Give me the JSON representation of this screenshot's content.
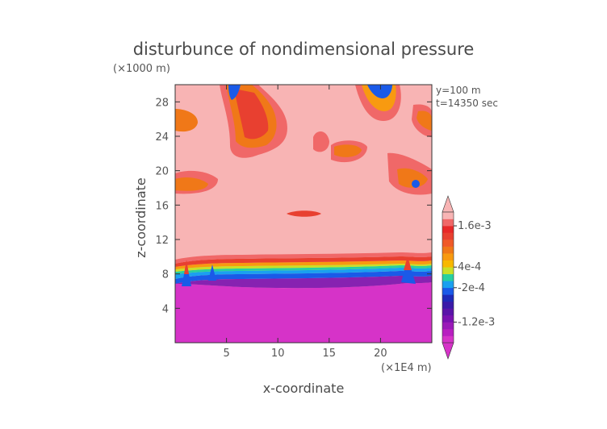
{
  "chart_data": {
    "type": "heatmap",
    "title": "disturbunce of nondimensional pressure",
    "xlabel": "x-coordinate",
    "ylabel": "z-coordinate",
    "x_unit": "(×1E4 m)",
    "y_unit": "(×1000 m)",
    "annotations": [
      "y=100 m",
      "t=14350 sec"
    ],
    "xlim": [
      0,
      25
    ],
    "ylim": [
      0,
      30
    ],
    "x_ticks": [
      5,
      10,
      15,
      20
    ],
    "y_ticks": [
      4,
      8,
      12,
      16,
      20,
      24,
      28
    ],
    "colorbar": {
      "tick_labels": [
        "1.6e-3",
        "4e-4",
        "-2e-4",
        "-1.2e-3"
      ],
      "tick_values": [
        0.0016,
        0.0004,
        -0.0002,
        -0.0012
      ],
      "min": -0.0018,
      "max": 0.002,
      "levels": [
        {
          "lo": -0.0018,
          "hi": -0.0016,
          "color": "#d633c8"
        },
        {
          "lo": -0.0016,
          "hi": -0.0014,
          "color": "#b81fc0"
        },
        {
          "lo": -0.0014,
          "hi": -0.0012,
          "color": "#9a1ab8"
        },
        {
          "lo": -0.0012,
          "hi": -0.001,
          "color": "#7a12b0"
        },
        {
          "lo": -0.001,
          "hi": -0.0008,
          "color": "#5a14a8"
        },
        {
          "lo": -0.0008,
          "hi": -0.0006,
          "color": "#3a1aa8"
        },
        {
          "lo": -0.0006,
          "hi": -0.0004,
          "color": "#1e2ab8"
        },
        {
          "lo": -0.0004,
          "hi": -0.0002,
          "color": "#1a5ae8"
        },
        {
          "lo": -0.0002,
          "hi": 0.0,
          "color": "#1aa0f0"
        },
        {
          "lo": 0.0,
          "hi": 0.0002,
          "color": "#28d0a0"
        },
        {
          "lo": 0.0002,
          "hi": 0.0004,
          "color": "#c8e028"
        },
        {
          "lo": 0.0004,
          "hi": 0.0006,
          "color": "#f8b800"
        },
        {
          "lo": 0.0006,
          "hi": 0.0008,
          "color": "#f89a10"
        },
        {
          "lo": 0.0008,
          "hi": 0.001,
          "color": "#f07818"
        },
        {
          "lo": 0.001,
          "hi": 0.0012,
          "color": "#f05a28"
        },
        {
          "lo": 0.0012,
          "hi": 0.0014,
          "color": "#e84030"
        },
        {
          "lo": 0.0014,
          "hi": 0.0016,
          "color": "#e82828"
        },
        {
          "lo": 0.0016,
          "hi": 0.0018,
          "color": "#f06868"
        },
        {
          "lo": 0.0018,
          "hi": 0.002,
          "color": "#f8b4b4"
        }
      ]
    },
    "field": {
      "background_level_color": "#f8b4b4",
      "regions": [
        {
          "name": "lower-negative-layer",
          "z_range": [
            0,
            7.5
          ],
          "color": "#d633c8"
        },
        {
          "name": "gradient-band",
          "z_range": [
            7.5,
            10
          ],
          "note": "transition from negative to positive"
        },
        {
          "name": "upper-positive-region",
          "z_range": [
            10,
            30
          ],
          "color": "#f8b4b4"
        }
      ]
    }
  }
}
